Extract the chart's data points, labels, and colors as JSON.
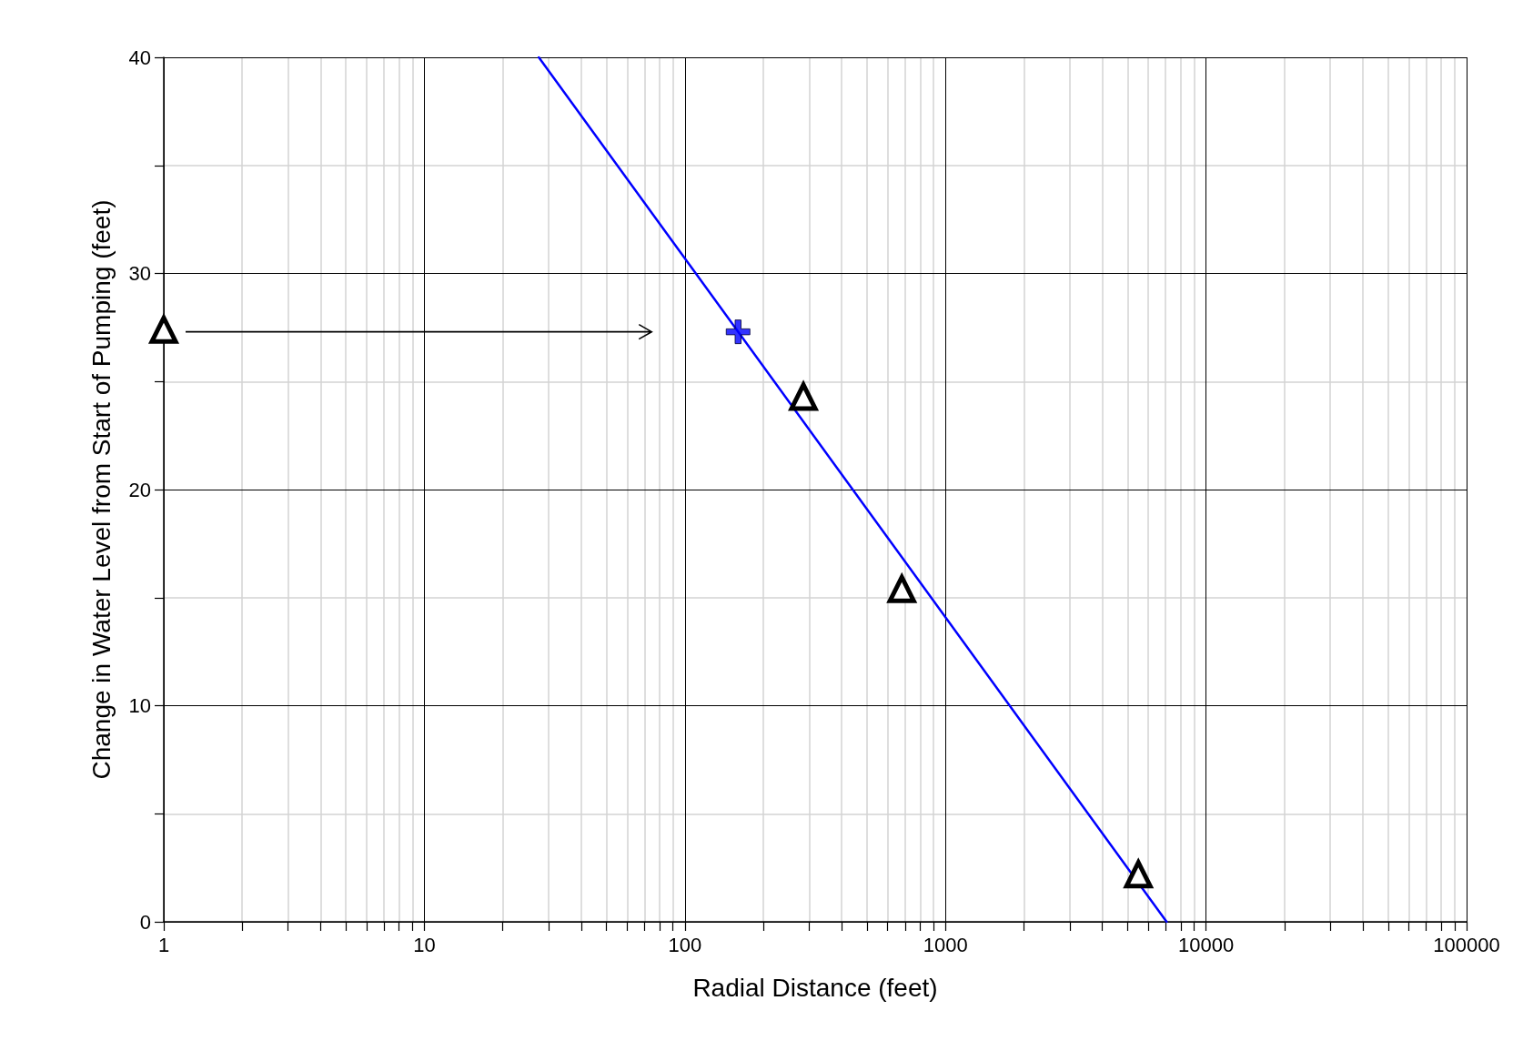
{
  "chart_data": {
    "type": "scatter",
    "xlabel": "Radial Distance (feet)",
    "ylabel": "Change in Water Level from Start of Pumping (feet)",
    "log": "x",
    "xlim": [
      1,
      100000
    ],
    "xticks": [
      1,
      {
        "value": 2,
        "label": null
      },
      {
        "value": 3,
        "label": null
      },
      {
        "value": 4,
        "label": null
      },
      {
        "value": 5,
        "label": null
      },
      {
        "value": 6,
        "label": null
      },
      {
        "value": 7,
        "label": null
      },
      {
        "value": 8,
        "label": null
      },
      {
        "value": 9,
        "label": null
      },
      10,
      {
        "value": 20,
        "label": null
      },
      {
        "value": 30,
        "label": null
      },
      {
        "value": 40,
        "label": null
      },
      {
        "value": 50,
        "label": null
      },
      {
        "value": 60,
        "label": null
      },
      {
        "value": 70,
        "label": null
      },
      {
        "value": 80,
        "label": null
      },
      {
        "value": 90,
        "label": null
      },
      100,
      {
        "value": 200,
        "label": null
      },
      {
        "value": 300,
        "label": null
      },
      {
        "value": 400,
        "label": null
      },
      {
        "value": 500,
        "label": null
      },
      {
        "value": 600,
        "label": null
      },
      {
        "value": 700,
        "label": null
      },
      {
        "value": 800,
        "label": null
      },
      {
        "value": 900,
        "label": null
      },
      1000,
      {
        "value": 2000,
        "label": null
      },
      {
        "value": 3000,
        "label": null
      },
      {
        "value": 4000,
        "label": null
      },
      {
        "value": 5000,
        "label": null
      },
      {
        "value": 6000,
        "label": null
      },
      {
        "value": 7000,
        "label": null
      },
      {
        "value": 8000,
        "label": null
      },
      {
        "value": 9000,
        "label": null
      },
      10000,
      {
        "value": 20000,
        "label": null
      },
      {
        "value": 30000,
        "label": null
      },
      {
        "value": 40000,
        "label": null
      },
      {
        "value": 50000,
        "label": null
      },
      {
        "value": 60000,
        "label": null
      },
      {
        "value": 70000,
        "label": null
      },
      {
        "value": 80000,
        "label": null
      },
      {
        "value": 90000,
        "label": null
      },
      100000
    ],
    "ylim": [
      0,
      40
    ],
    "yticks": [
      0,
      {
        "value": 5,
        "label": null
      },
      10,
      {
        "value": 15,
        "label": null
      },
      20,
      {
        "value": 25,
        "label": null
      },
      30,
      {
        "value": 35,
        "label": null
      },
      40
    ],
    "grid": true,
    "series": [
      {
        "type": "line",
        "color": "#0000ff",
        "marker": "none",
        "x": [
          27.5,
          7060
        ],
        "values": [
          40,
          0
        ]
      },
      {
        "color": "#000000",
        "marker": "triangle",
        "x": [
          1,
          285,
          680,
          5500
        ],
        "values": [
          27.4,
          24.3,
          15.4,
          2.2
        ]
      },
      {
        "color": "#0000ff",
        "marker": "cross",
        "x": [
          160
        ],
        "values": [
          27.3
        ]
      }
    ]
  }
}
